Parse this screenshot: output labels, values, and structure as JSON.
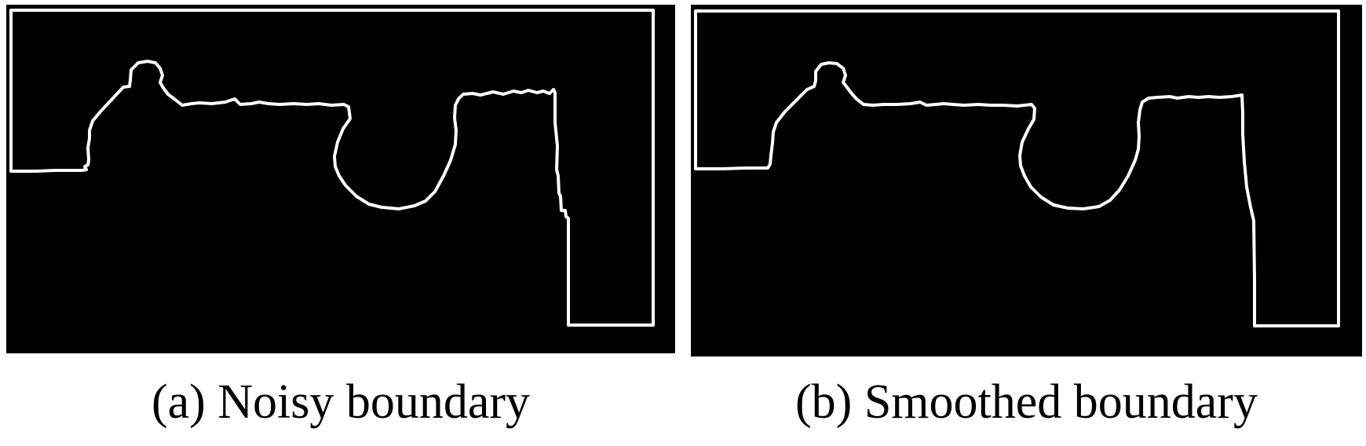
{
  "figure": {
    "panels": [
      {
        "caption": "(a) Noisy boundary",
        "background": "#000000",
        "line_color": "#ffffff"
      },
      {
        "caption": "(b) Smoothed boundary",
        "background": "#000000",
        "line_color": "#ffffff"
      }
    ]
  }
}
